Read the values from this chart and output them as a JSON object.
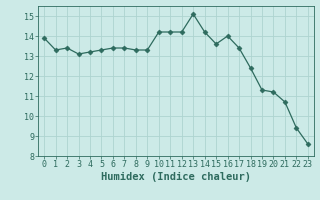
{
  "x": [
    0,
    1,
    2,
    3,
    4,
    5,
    6,
    7,
    8,
    9,
    10,
    11,
    12,
    13,
    14,
    15,
    16,
    17,
    18,
    19,
    20,
    21,
    22,
    23
  ],
  "y": [
    13.9,
    13.3,
    13.4,
    13.1,
    13.2,
    13.3,
    13.4,
    13.4,
    13.3,
    13.3,
    14.2,
    14.2,
    14.2,
    15.1,
    14.2,
    13.6,
    14.0,
    13.4,
    12.4,
    11.3,
    11.2,
    10.7,
    9.4,
    8.6
  ],
  "line_color": "#2e6b5e",
  "marker": "D",
  "marker_size": 2.5,
  "bg_color": "#cceae7",
  "grid_color": "#aed4d0",
  "xlabel": "Humidex (Indice chaleur)",
  "ylim": [
    8,
    15.5
  ],
  "xlim": [
    -0.5,
    23.5
  ],
  "yticks": [
    8,
    9,
    10,
    11,
    12,
    13,
    14,
    15
  ],
  "xticks": [
    0,
    1,
    2,
    3,
    4,
    5,
    6,
    7,
    8,
    9,
    10,
    11,
    12,
    13,
    14,
    15,
    16,
    17,
    18,
    19,
    20,
    21,
    22,
    23
  ],
  "tick_color": "#2e6b5e",
  "label_fontsize": 6,
  "xlabel_fontsize": 7.5
}
